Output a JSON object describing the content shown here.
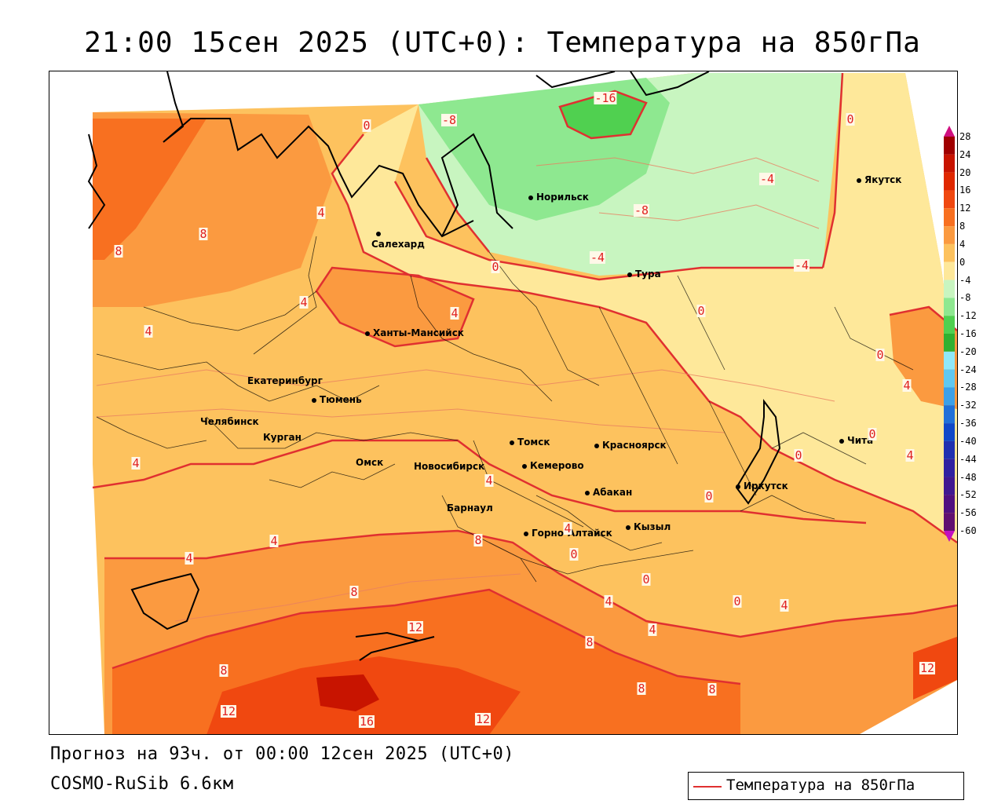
{
  "title": "21:00 15сен 2025 (UTC+0): Температура на 850гПа",
  "footer": {
    "forecast": "Прогноз на 93ч. от 00:00 12сен 2025 (UTC+0)",
    "model": "COSMO-RuSib 6.6км"
  },
  "legend": {
    "label": "Температура на 850гПа",
    "line_color": "#e03030"
  },
  "colorbar": {
    "ticks": [
      "28",
      "24",
      "20",
      "16",
      "12",
      "8",
      "4",
      "0",
      "-4",
      "-8",
      "-12",
      "-16",
      "-20",
      "-24",
      "-28",
      "-32",
      "-36",
      "-40",
      "-44",
      "-48",
      "-52",
      "-56",
      "-60"
    ],
    "colors": [
      "#a00000",
      "#c81400",
      "#e02800",
      "#f04810",
      "#f87020",
      "#fb9a40",
      "#fdc25e",
      "#fee89a",
      "#c8f5c0",
      "#8ee890",
      "#50d050",
      "#30b030",
      "#90e8f8",
      "#60c8f0",
      "#3ca0e8",
      "#2070d8",
      "#1048c8",
      "#2030b0",
      "#3020a0",
      "#401890",
      "#501080",
      "#601070"
    ],
    "top_arrow_color": "#d01080",
    "bottom_arrow_color": "#c010c0"
  },
  "cities": [
    {
      "name": "Норильск"
    },
    {
      "name": "Якутск"
    },
    {
      "name": "Салехард"
    },
    {
      "name": "Тура"
    },
    {
      "name": "Ханты-Мансийск"
    },
    {
      "name": "Екатеринбург"
    },
    {
      "name": "Тюмень"
    },
    {
      "name": "Челябинск"
    },
    {
      "name": "Курган"
    },
    {
      "name": "Омск"
    },
    {
      "name": "Новосибирск"
    },
    {
      "name": "Томск"
    },
    {
      "name": "Красноярск"
    },
    {
      "name": "Кемерово"
    },
    {
      "name": "Абакан"
    },
    {
      "name": "Барнаул"
    },
    {
      "name": "Горно-Алтайск"
    },
    {
      "name": "Кызыл"
    },
    {
      "name": "Иркутск"
    },
    {
      "name": "Чита"
    }
  ],
  "contour_labels": [
    "-16",
    "-8",
    "0",
    "0",
    "-8",
    "-4",
    "-4",
    "-4",
    "0",
    "0",
    "0",
    "4",
    "8",
    "8",
    "4",
    "4",
    "4",
    "4",
    "0",
    "0",
    "4",
    "4",
    "4",
    "8",
    "4",
    "0",
    "0",
    "0",
    "4",
    "4",
    "8",
    "12",
    "12",
    "16",
    "12",
    "8",
    "8",
    "8",
    "8",
    "4",
    "4",
    "4",
    "12",
    "0",
    "0"
  ]
}
